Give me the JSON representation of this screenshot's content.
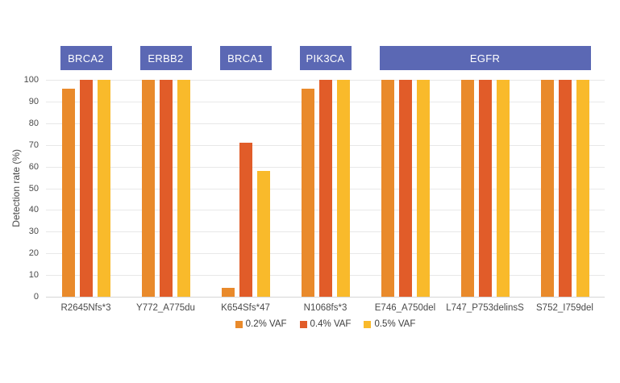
{
  "chart_data": {
    "type": "bar",
    "title": "",
    "xlabel": "",
    "ylabel": "Detection rate (%)",
    "ylim": [
      0,
      100
    ],
    "yticks": [
      0,
      10,
      20,
      30,
      40,
      50,
      60,
      70,
      80,
      90,
      100
    ],
    "grid": true,
    "legend_position": "bottom-center",
    "categories": [
      "R2645Nfs*3",
      "Y772_A775du",
      "K654Sfs*47",
      "N1068fs*3",
      "E746_A750del",
      "L747_P753delinsS",
      "S752_I759del"
    ],
    "series": [
      {
        "name": "0.2% VAF",
        "color": "#E98A2B",
        "values": [
          96,
          100,
          4,
          96,
          100,
          100,
          100
        ]
      },
      {
        "name": "0.4% VAF",
        "color": "#E15C29",
        "values": [
          100,
          100,
          71,
          100,
          100,
          100,
          100
        ]
      },
      {
        "name": "0.5% VAF",
        "color": "#F9BA2B",
        "values": [
          100,
          100,
          58,
          100,
          100,
          100,
          100
        ]
      }
    ],
    "gene_groups": [
      {
        "label": "BRCA2",
        "from": 0,
        "to": 0
      },
      {
        "label": "ERBB2",
        "from": 1,
        "to": 1
      },
      {
        "label": "BRCA1",
        "from": 2,
        "to": 2
      },
      {
        "label": "PIK3CA",
        "from": 3,
        "to": 3
      },
      {
        "label": "EGFR",
        "from": 4,
        "to": 6
      }
    ],
    "colors": {
      "gene_box_bg": "#5B68B4",
      "gene_box_text": "#FFFFFF",
      "gridline": "#E8E8E8",
      "axis_line": "#D6D6D6",
      "text": "#4A4A4A"
    }
  }
}
